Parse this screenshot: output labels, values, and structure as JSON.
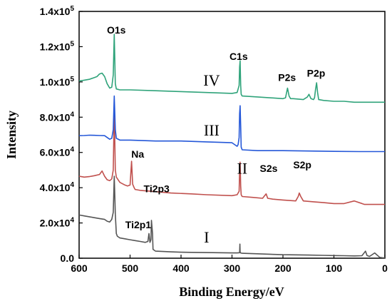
{
  "chart_data": {
    "type": "line",
    "xlabel": "Binding Energy/eV",
    "ylabel": "Intensity",
    "x_reversed": true,
    "xlim": [
      0,
      600
    ],
    "ylim": [
      0,
      140000
    ],
    "x_ticks": [
      {
        "value": 600,
        "label": "600"
      },
      {
        "value": 500,
        "label": "500"
      },
      {
        "value": 400,
        "label": "400"
      },
      {
        "value": 300,
        "label": "300"
      },
      {
        "value": 200,
        "label": "200"
      },
      {
        "value": 100,
        "label": "100"
      },
      {
        "value": 0,
        "label": "0"
      }
    ],
    "y_ticks": [
      {
        "value": 0,
        "mant": "0.0",
        "exp": ""
      },
      {
        "value": 20000,
        "mant": "2.0x10",
        "exp": "4"
      },
      {
        "value": 40000,
        "mant": "4.0x10",
        "exp": "4"
      },
      {
        "value": 60000,
        "mant": "6.0x10",
        "exp": "4"
      },
      {
        "value": 80000,
        "mant": "8.0x10",
        "exp": "4"
      },
      {
        "value": 100000,
        "mant": "1.0x10",
        "exp": "5"
      },
      {
        "value": 120000,
        "mant": "1.2x10",
        "exp": "5"
      },
      {
        "value": 140000,
        "mant": "1.4x10",
        "exp": "5"
      }
    ],
    "series": [
      {
        "color": "#555555",
        "label": "I",
        "label_x": 350,
        "label_y": 9000,
        "x": [
          600,
          590,
          580,
          570,
          560,
          550,
          545,
          540,
          536,
          533,
          531,
          529,
          527,
          525,
          520,
          510,
          500,
          490,
          480,
          470,
          465,
          463,
          461,
          459,
          458,
          456,
          455,
          450,
          420,
          400,
          380,
          350,
          300,
          290,
          285,
          284.5,
          284,
          283,
          280,
          250,
          200,
          150,
          120,
          100,
          80,
          60,
          45,
          38,
          35,
          30,
          20,
          10,
          5,
          0
        ],
        "y": [
          24500,
          24000,
          23500,
          23000,
          22500,
          22000,
          21000,
          20500,
          22000,
          26000,
          46500,
          25000,
          14000,
          12500,
          11500,
          11000,
          10500,
          10000,
          9500,
          9000,
          9500,
          14000,
          9000,
          10500,
          21500,
          14000,
          5000,
          4000,
          3600,
          3400,
          3300,
          3200,
          3000,
          3000,
          3100,
          8000,
          3500,
          3000,
          2800,
          2500,
          2000,
          1800,
          1600,
          1500,
          1400,
          1300,
          1400,
          4000,
          1500,
          1000,
          3000,
          500,
          300,
          200
        ]
      },
      {
        "color": "#c0504d",
        "label": "II",
        "label_x": 280,
        "label_y": 48000,
        "x": [
          600,
          590,
          580,
          570,
          560,
          555,
          550,
          545,
          540,
          536,
          533,
          531,
          529,
          527,
          520,
          510,
          505,
          500,
          497,
          495,
          492,
          490,
          480,
          460,
          420,
          380,
          350,
          300,
          290,
          286,
          285,
          284,
          283,
          282,
          280,
          260,
          240,
          233,
          230,
          220,
          200,
          175,
          170,
          168,
          165,
          160,
          140,
          120,
          100,
          80,
          60,
          40,
          20,
          0
        ],
        "y": [
          46500,
          46000,
          46300,
          46800,
          47500,
          49500,
          46500,
          44500,
          44000,
          45000,
          50000,
          83500,
          50000,
          46000,
          43000,
          41500,
          41000,
          41500,
          55000,
          42000,
          40000,
          39000,
          38500,
          38000,
          37000,
          36500,
          36000,
          35500,
          36000,
          38000,
          49000,
          54500,
          41000,
          36000,
          35000,
          34500,
          34000,
          36500,
          34000,
          33500,
          33000,
          32500,
          35000,
          37000,
          35000,
          32500,
          32000,
          31500,
          31000,
          31000,
          32500,
          30500,
          30500,
          30500
        ]
      },
      {
        "color": "#2457d8",
        "label": "III",
        "label_x": 340,
        "label_y": 69500,
        "x": [
          600,
          590,
          580,
          570,
          560,
          550,
          545,
          540,
          536,
          533,
          531,
          529,
          527,
          520,
          500,
          450,
          400,
          350,
          300,
          295,
          290,
          288,
          286,
          285,
          284,
          283,
          282,
          280,
          250,
          200,
          150,
          100,
          50,
          0
        ],
        "y": [
          69500,
          69600,
          69800,
          69700,
          69600,
          69500,
          68500,
          67500,
          68000,
          73000,
          92000,
          73000,
          68000,
          67000,
          67000,
          66500,
          66500,
          66000,
          65500,
          64500,
          63500,
          64500,
          68500,
          82000,
          86500,
          75000,
          63000,
          61500,
          61000,
          61000,
          60800,
          60600,
          60500,
          60500
        ]
      },
      {
        "color": "#2fa37a",
        "label": "IV",
        "label_x": 340,
        "label_y": 98000,
        "x": [
          600,
          590,
          580,
          570,
          565,
          560,
          555,
          550,
          545,
          540,
          536,
          533,
          531,
          529,
          527,
          520,
          500,
          450,
          400,
          350,
          300,
          290,
          286,
          285,
          284,
          283,
          282,
          280,
          250,
          200,
          195,
          191,
          188,
          185,
          180,
          160,
          152,
          149,
          145,
          140,
          138,
          136,
          134,
          132,
          130,
          120,
          100,
          80,
          60,
          40,
          20,
          0
        ],
        "y": [
          100500,
          101000,
          101500,
          102500,
          103000,
          104500,
          105000,
          103000,
          99000,
          96500,
          97000,
          104000,
          127000,
          99000,
          96000,
          95500,
          95500,
          95000,
          94500,
          94000,
          93500,
          94000,
          98000,
          108500,
          112000,
          98000,
          93000,
          92000,
          91500,
          90500,
          91000,
          96500,
          92000,
          90500,
          90500,
          90000,
          91500,
          93000,
          90500,
          90000,
          91000,
          96000,
          99500,
          94000,
          90000,
          89500,
          89000,
          89000,
          88500,
          88500,
          88500,
          88500
        ]
      }
    ],
    "annotations": [
      {
        "text": "O1s",
        "x": 527,
        "y": 127500
      },
      {
        "text": "C1s",
        "x": 287,
        "y": 112500
      },
      {
        "text": "P2s",
        "x": 192,
        "y": 100500
      },
      {
        "text": "P2p",
        "x": 135,
        "y": 103000
      },
      {
        "text": "Na",
        "x": 485,
        "y": 57000
      },
      {
        "text": "S2s",
        "x": 228,
        "y": 49000
      },
      {
        "text": "S2p",
        "x": 162,
        "y": 51000
      },
      {
        "text": "Ti2p1",
        "x": 484,
        "y": 17000
      },
      {
        "text": "Ti2p3",
        "x": 448,
        "y": 37500
      }
    ]
  }
}
